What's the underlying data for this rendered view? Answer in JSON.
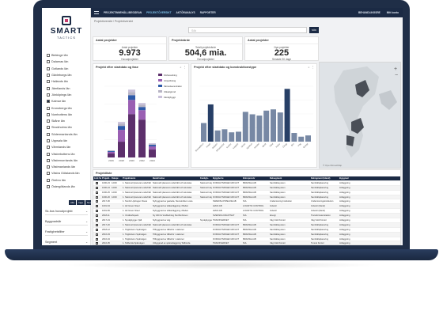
{
  "topbar": {
    "nav": [
      "PROJEKTINNEHÅLL/BEGÄRAN",
      "PROJEKTÖVERSIKT",
      "AKTÖRANALYS",
      "RAPPORTER"
    ],
    "active_index": 1,
    "user": "BEHANDLINGSRE",
    "settings": "Mitt konto"
  },
  "sidebar": {
    "logo_main": "SMART",
    "logo_sub": "TACTICS",
    "counties": [
      "Blekinge län",
      "Dalarnas län",
      "Gotlands län",
      "Gävleborgs län",
      "Hallands län",
      "Jämtlands län",
      "Jönköpings län",
      "Kalmar län",
      "Kronobergs län",
      "Norrbottens län",
      "Skåne län",
      "Stockholms län",
      "Södermanlands län",
      "Uppsala län",
      "Värmlands län",
      "Västerbottens län",
      "Västernorrlands län",
      "Västmanlands län",
      "Västra Götalands län",
      "Örebro län",
      "Östergötlands län"
    ],
    "checked_index": 7,
    "buttons": [
      "Alla",
      "Inga",
      "Norde"
    ],
    "filters": [
      "Sk-bus huvudprojekt",
      "Byggnadsår",
      "Fastighetsfilter",
      "Segment"
    ]
  },
  "main": {
    "breadcrumb": "Projektöversikt / Projektöversikt",
    "search_placeholder": "Sök",
    "search_button": "SÖK",
    "kpis": [
      {
        "title": "Antal projekter",
        "sub": "Antal projekter",
        "value": "9.973",
        "note": "Huvudprojekter"
      },
      {
        "title": "Projektvärde",
        "sub": "Totalt projektvärde",
        "value": "504,6 mia.",
        "note": "Huvudprojekter"
      },
      {
        "title": "Antal projekter",
        "sub": "Nya projekter",
        "value": "225",
        "note": "Senaste 30 dage"
      }
    ],
    "chart1_title": "Projekt efter startdato og fase",
    "chart2_title": "Projekt efter startdato og konstruktionstype",
    "table_title": "Projektliste",
    "columns": [
      "Link Sel.",
      "Projekt..",
      "Datapr..",
      "Projektnamn",
      "Beskrivelse",
      "Fastigh..",
      "Byggherre",
      "Entreprenör",
      "Delsegment",
      "Delmgment (bland)",
      "Byggnad"
    ]
  },
  "chart_data": [
    {
      "type": "bar",
      "categories": [
        "2016",
        "2018",
        "2020",
        "2022",
        "2024"
      ],
      "series": [
        {
          "name": "Förberedning",
          "values": [
            5,
            20,
            55,
            48,
            10
          ]
        },
        {
          "name": "Utrparbining",
          "values": [
            2,
            15,
            18,
            12,
            4
          ]
        },
        {
          "name": "Skrivelsecentralen",
          "values": [
            1,
            5,
            6,
            4,
            2
          ]
        },
        {
          "name": "Utkastgrund",
          "values": [
            1,
            3,
            4,
            3,
            1
          ]
        },
        {
          "name": "Färdigbyggt",
          "values": [
            0,
            2,
            3,
            2,
            1
          ]
        }
      ],
      "colors": [
        "#5c2f6b",
        "#9a5fb3",
        "#2e5aa8",
        "#b7b3c4",
        "#c9c0da"
      ],
      "title": "Projekt efter startdato og fase"
    },
    {
      "type": "bar",
      "categories": [
        "Bostadshus",
        "Hotell",
        "Industri",
        "Infrastruktur",
        "Kontor",
        "Logistik",
        "Skola",
        "Sjukhus",
        "Handel",
        "Idrott",
        "Vård",
        "Kultur",
        "Övrigt",
        "Bro",
        "Väg",
        "Energi"
      ],
      "values": [
        30,
        60,
        18,
        20,
        15,
        16,
        48,
        44,
        42,
        50,
        52,
        47,
        85,
        14,
        8,
        10
      ],
      "colors": [
        "#7788a4",
        "#273f66",
        "#7788a4"
      ],
      "title": "Projekt efter startdato og konstruktionstype"
    }
  ],
  "table": {
    "rows": [
      [
        "Link Sel.",
        "1000-23",
        "12/00",
        "1. Nationell planerat underhåll",
        "Nationellt planerat underhåll och tekniska",
        "Nationell väg",
        "FÖRVALTNINGEN AB GOT",
        "BRÄNSLE AB",
        "Samhällssystem",
        "Samhällsplanering",
        "Anläggning"
      ],
      [
        "",
        "1000-24",
        "12/00",
        "1. Nationell planerat underhåll",
        "Nationellt planerat underhåll och tekniska",
        "Nationell väg",
        "FÖRVALTNINGEN AB GOT",
        "BRÄNSLE AB",
        "Samhällssystem",
        "Samhällsplanering",
        "Anläggning"
      ],
      [
        "",
        "1000-25",
        "12/00",
        "1. Nationell planerat underhåll",
        "Nationellt planerat underhåll och tekniska",
        "Nationell väg",
        "FÖRVALTNINGEN AB GOT",
        "BRÄNSLE AB",
        "Samhällssystem",
        "Samhällsplanering",
        "Anläggning"
      ],
      [
        "",
        "1000-26",
        "12/00",
        "1. Nationell planerat underhåll",
        "Nationellt planerat underhåll och tekniska",
        "Nationell väg",
        "FÖRVALTNINGEN AB GOT",
        "BRÄNSLE AB",
        "Samhällssystem",
        "Samhällsplanering",
        "Anläggning"
      ],
      [
        "",
        "2017-06",
        "",
        "1. Nordic Hydrogen Route",
        "Nybyggnad av gasleda, Stenstrollson vara",
        "",
        "SWEDISH PIPELINE AB",
        "N/A",
        "Undervisning Institution",
        "Undervisningsinstitution",
        "Anläggning"
      ],
      [
        "",
        "1001-64",
        "",
        "1. H2 Green Steel",
        "Nybyggnad av stålanläggning i Boden",
        "",
        "H2GS AB",
        "LOGISTIC CONTROL",
        "Industri",
        "Industri (bland)",
        "Anläggning"
      ],
      [
        "",
        "1001-65",
        "",
        "1. H2 Green Steel",
        "Nybyggnad av stålanläggning i Boden",
        "",
        "H2GS AB",
        "LOGISTIC CONTROL",
        "Industri",
        "Industri (bland)",
        "Anläggning"
      ],
      [
        "",
        "2018-11",
        "",
        "1. Vindkraftspark",
        "Ny 460 kV kraftledning Storfinnforsen",
        "",
        "SVENSKA KRAFTNÄT",
        "N/A",
        "Energi",
        "Transformatorstation",
        "Anläggning"
      ],
      [
        "",
        "2017-19",
        "",
        "1. Nyvägbygge i fjäll",
        "Nybyggnad av väg",
        "Nyvägbygge",
        "TRAFIKVERKET",
        "N/A",
        "Väg Vård Kontor",
        "Väg Vård Kontor",
        "Anläggning"
      ],
      [
        "",
        "2017-20",
        "",
        "1. Nationell planerat underhåll",
        "Nationellt planerat underhåll och tekniska",
        "",
        "FÖRVALTNINGEN AB GOT",
        "BRÄNSLE AB",
        "Samhällssystem",
        "Samhällsplanering",
        "Anläggning"
      ],
      [
        "",
        "2018-12",
        "",
        "1. Tågfartsom Spårvägen",
        "Tillbyggnad av tillbehör i stationer",
        "",
        "FÖRVALTNINGEN AB GOT",
        "BRÄNSLE AB",
        "Samhällssystem",
        "Samhällsplanering",
        "Anläggning"
      ],
      [
        "",
        "2016-03",
        "",
        "1. Tågfartsom Spårvägen",
        "Tillbyggnad av tillbehör i stationer",
        "",
        "FÖRVALTNINGEN AB GOT",
        "BRÄNSLE AB",
        "Samhällssystem",
        "Samhällsplanering",
        "Anläggning"
      ],
      [
        "",
        "2016-04",
        "",
        "1. Tågfartsom Spårvägen",
        "Tillbyggnad av tillbehör i stationer",
        "",
        "FÖRVALTNINGEN AB GOT",
        "BRÄNSLE AB",
        "Samhällssystem",
        "Samhällsplanering",
        "Anläggning"
      ],
      [
        "",
        "2016-05",
        "",
        "1. Tellborda Spårvägen",
        "Utbyggnad av spåranläggning Tellborda",
        "",
        "TRAFIKVERKET",
        "N/A",
        "Väg Vård Kontor",
        "Tunnel Kontor",
        "Anläggning"
      ],
      [
        "",
        "2016-06",
        "",
        "1. Tellborda Spårvägen",
        "Utbyggnad av spåranläggning Tellborda",
        "",
        "TRAFIKVERKET",
        "N/A",
        "Väg Vård Kontor",
        "Tunnel Kontor",
        "Anläggning"
      ],
      [
        "",
        "2016-07",
        "",
        "1. Ullandsväg Nybyggnad",
        "Ny förvaring av bostadshus i Tellborda",
        "BGS Vägar",
        "SVENSKA BANNINGAR",
        "SVENSKA BANNINGAR",
        "Bostad",
        "Bostad",
        "Byggnad"
      ],
      [
        "",
        "2016-08",
        "",
        "1. Flerbostäder Nybyggnad",
        "Ny förvaring av bostadshus i Tellborda",
        "BGS Vägar",
        "SVENSKA BANNINGAR",
        "SVENSKA BANNINGAR",
        "Bostad",
        "Bostad",
        "Byggnad"
      ],
      [
        "",
        "2016-09",
        "",
        "1. Nationell förvaring",
        "Ny förvaring av bostadshus Tellborda",
        "BGS Vägar",
        "SVENSKA BANNINGAR",
        "SVENSKA BANNINGAR",
        "Bostad",
        "Byggmontering",
        "Byggnad"
      ]
    ]
  }
}
